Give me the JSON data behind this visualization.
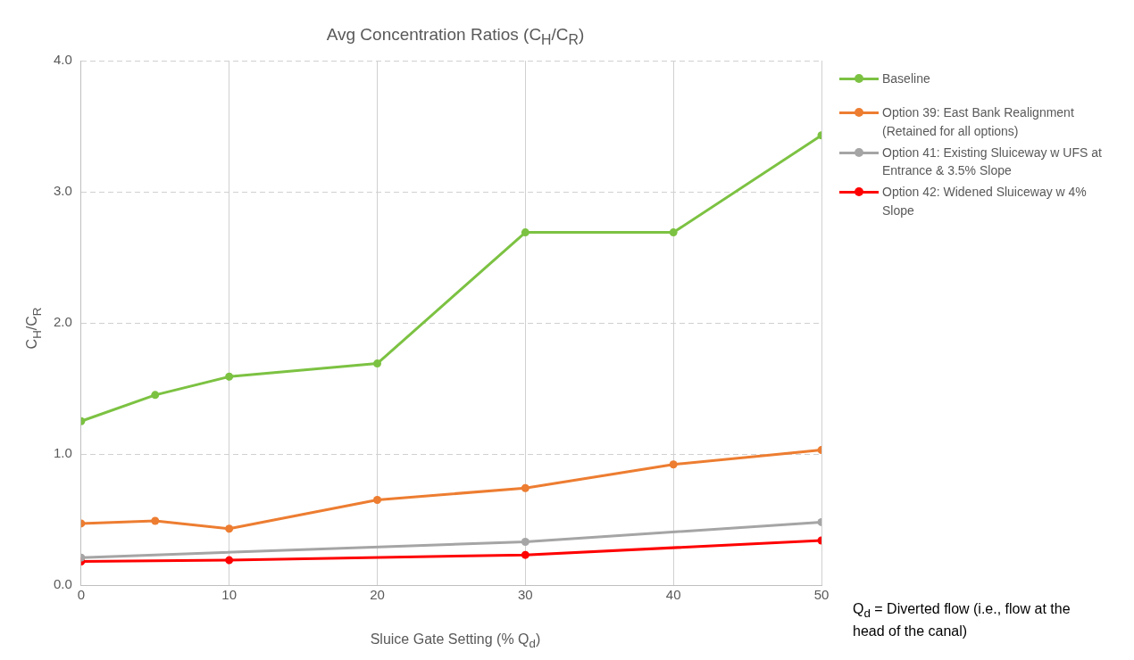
{
  "chart_data": {
    "type": "line",
    "title": "Avg Concentration Ratios (C$_{H}$/C$_{R}$)",
    "xlabel": "Sluice Gate Setting (% Q$_{d}$)",
    "ylabel": "C$_{H}$/C$_{R}$",
    "xlim": [
      0,
      50
    ],
    "xticks": [
      0,
      10,
      20,
      30,
      40,
      50
    ],
    "ylim": [
      0,
      4
    ],
    "yticks": [
      {
        "value": 0,
        "label": "0.0"
      },
      {
        "value": 1,
        "label": "1.0"
      },
      {
        "value": 2,
        "label": "2.0"
      },
      {
        "value": 3,
        "label": "3.0"
      },
      {
        "value": 4,
        "label": "4.0"
      }
    ],
    "grid": true,
    "legend": "right",
    "marker": "circle",
    "line_style": "solid",
    "series": [
      {
        "name": "Baseline",
        "color": "#7cc242",
        "x": [
          0,
          5,
          10,
          20,
          30,
          40,
          50
        ],
        "values": [
          1.25,
          1.45,
          1.59,
          1.69,
          2.69,
          2.69,
          3.43
        ]
      },
      {
        "name": "Option 39: East Bank Realignment (Retained for all options)",
        "color": "#ed7d31",
        "x": [
          0,
          5,
          10,
          20,
          30,
          40,
          50
        ],
        "values": [
          0.47,
          0.49,
          0.43,
          0.65,
          0.74,
          0.92,
          1.03
        ]
      },
      {
        "name": "Option 41: Existing Sluiceway w UFS at Entrance & 3.5% Slope",
        "color": "#a5a5a5",
        "x": [
          0,
          30,
          50
        ],
        "values": [
          0.21,
          0.33,
          0.48
        ]
      },
      {
        "name": "Option 42: Widened Sluiceway w 4% Slope",
        "color": "#ff0000",
        "x": [
          0,
          10,
          30,
          50
        ],
        "values": [
          0.18,
          0.19,
          0.23,
          0.34
        ]
      }
    ],
    "annotations": [
      "Q$_{d}$ = Diverted flow (i.e., flow at the head of the canal)"
    ]
  }
}
